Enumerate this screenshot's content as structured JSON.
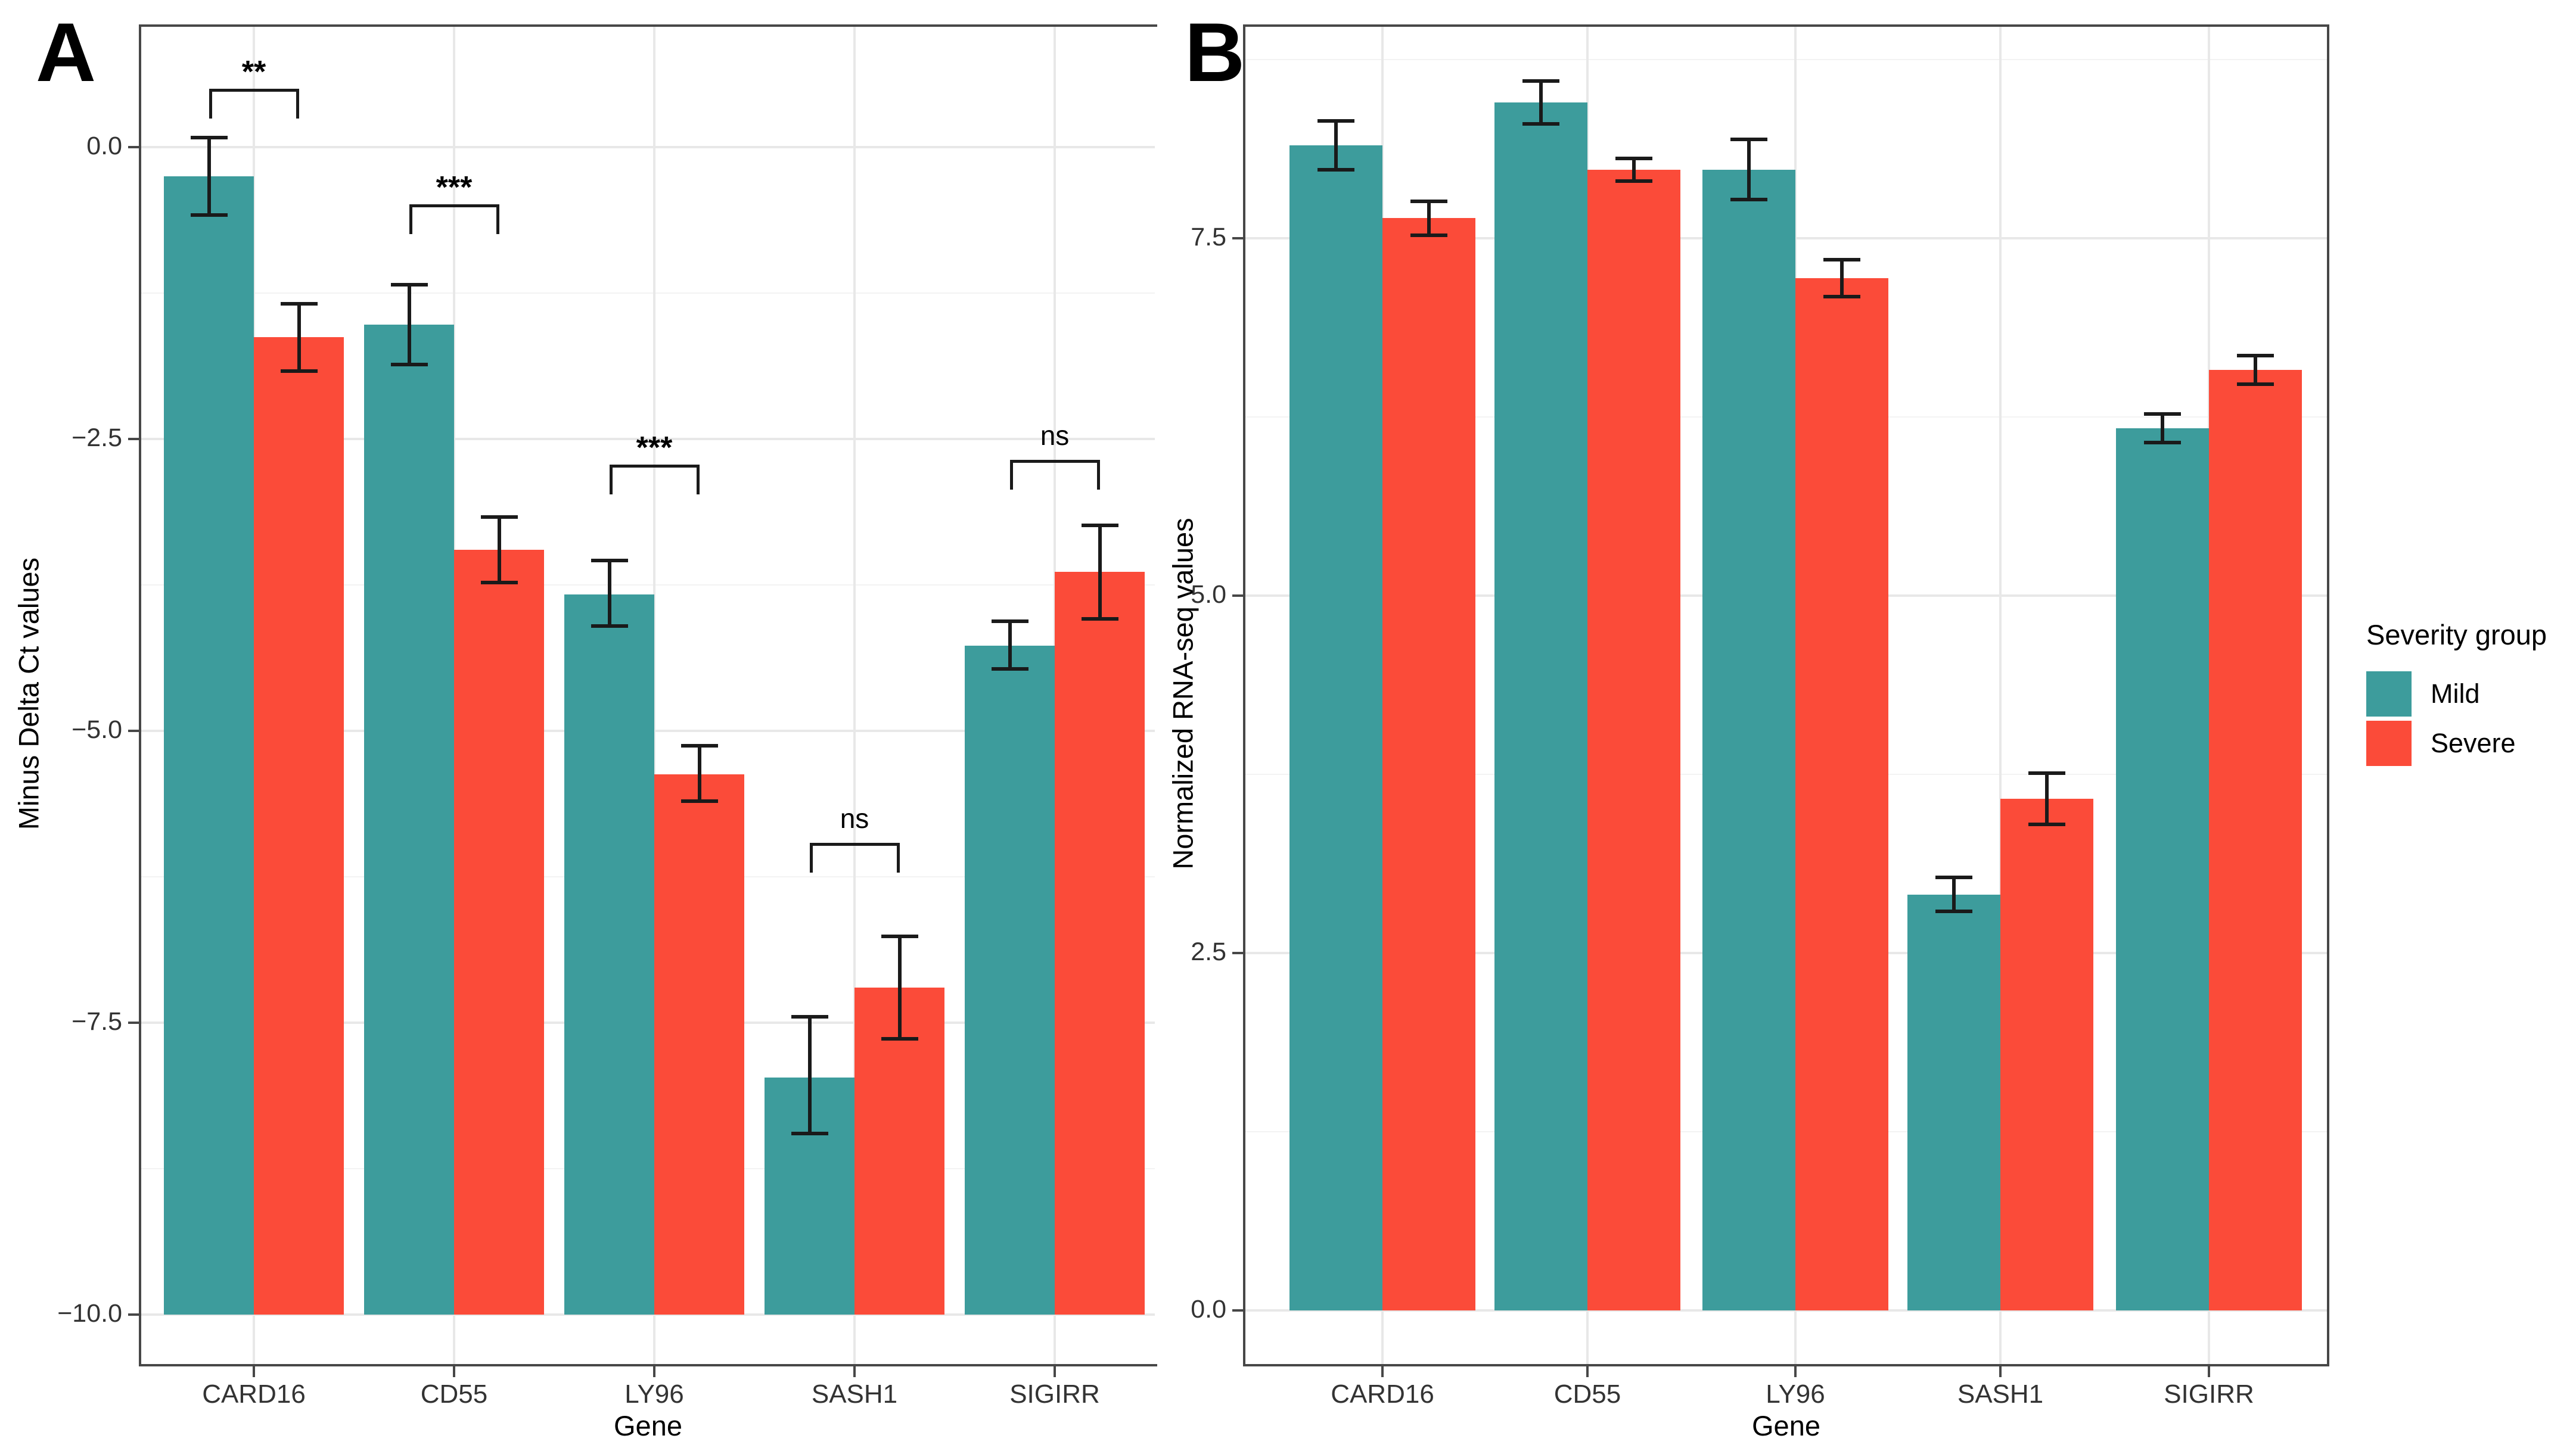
{
  "figure": {
    "panels": [
      "A",
      "B"
    ]
  },
  "legend": {
    "title": "Severity group",
    "items": [
      {
        "label": "Mild",
        "color": "#3D9C9C"
      },
      {
        "label": "Severe",
        "color": "#FB4B39"
      }
    ]
  },
  "colors": {
    "mild": "#3D9C9C",
    "severe": "#FB4B39",
    "axis_line": "#474747",
    "grid_major": "#E8E8E8",
    "grid_minor": "#F3F3F3",
    "tick_text": "#333333",
    "error_bar": "#1A1A1A"
  },
  "chart_data": [
    {
      "id": "A",
      "panel_label": "A",
      "type": "bar",
      "title": "",
      "xlabel": "Gene",
      "ylabel": "Minus Delta Ct values",
      "categories": [
        "CARD16",
        "CD55",
        "LY96",
        "SASH1",
        "SIGIRR"
      ],
      "series": [
        {
          "name": "Mild",
          "values": [
            -0.25,
            -1.52,
            -3.83,
            -7.97,
            -4.27
          ],
          "err_high": [
            0.08,
            -1.18,
            -3.54,
            -7.45,
            -4.06
          ],
          "err_low": [
            -0.58,
            -1.86,
            -4.1,
            -8.45,
            -4.47
          ]
        },
        {
          "name": "Severe",
          "values": [
            -1.63,
            -3.45,
            -5.37,
            -7.2,
            -3.64
          ],
          "err_high": [
            -1.34,
            -3.17,
            -5.13,
            -6.76,
            -3.24
          ],
          "err_low": [
            -1.92,
            -3.73,
            -5.6,
            -7.64,
            -4.04
          ]
        }
      ],
      "significance": [
        {
          "label": "**",
          "y": 0.5
        },
        {
          "label": "***",
          "y": -0.49
        },
        {
          "label": "***",
          "y": -2.72
        },
        {
          "label": "ns",
          "y": -5.96
        },
        {
          "label": "ns",
          "y": -2.68
        }
      ],
      "yticks": [
        {
          "v": 0.0,
          "label": "0.0"
        },
        {
          "v": -2.5,
          "label": "−2.5"
        },
        {
          "v": -5.0,
          "label": "−5.0"
        },
        {
          "v": -7.5,
          "label": "−7.5"
        },
        {
          "v": -10.0,
          "label": "−10.0"
        }
      ],
      "minor_ticks": [
        -1.25,
        -3.75,
        -6.25,
        -8.75
      ],
      "ylim": [
        1.03,
        -10.42
      ],
      "bar_base": -10.0,
      "grid": true,
      "legend_position": "none"
    },
    {
      "id": "B",
      "panel_label": "B",
      "type": "bar",
      "title": "",
      "xlabel": "Gene",
      "ylabel": "Normalized RNA-seq values",
      "categories": [
        "CARD16",
        "CD55",
        "LY96",
        "SASH1",
        "SIGIRR"
      ],
      "series": [
        {
          "name": "Mild",
          "values": [
            8.15,
            8.45,
            7.98,
            2.91,
            6.17
          ],
          "err_high": [
            8.32,
            8.6,
            8.19,
            3.03,
            6.27
          ],
          "err_low": [
            7.98,
            8.3,
            7.77,
            2.79,
            6.07
          ]
        },
        {
          "name": "Severe",
          "values": [
            7.64,
            7.98,
            7.22,
            3.58,
            6.58
          ],
          "err_high": [
            7.76,
            8.06,
            7.35,
            3.76,
            6.68
          ],
          "err_low": [
            7.52,
            7.9,
            7.09,
            3.4,
            6.48
          ]
        }
      ],
      "significance": [],
      "yticks": [
        {
          "v": 7.5,
          "label": "7.5"
        },
        {
          "v": 5.0,
          "label": "5.0"
        },
        {
          "v": 2.5,
          "label": "2.5"
        },
        {
          "v": 0.0,
          "label": "0.0"
        }
      ],
      "minor_ticks": [
        8.75,
        6.25,
        3.75,
        1.25
      ],
      "ylim": [
        8.98,
        -0.38
      ],
      "bar_base": 0.0,
      "grid": true,
      "legend_position": "right"
    }
  ]
}
